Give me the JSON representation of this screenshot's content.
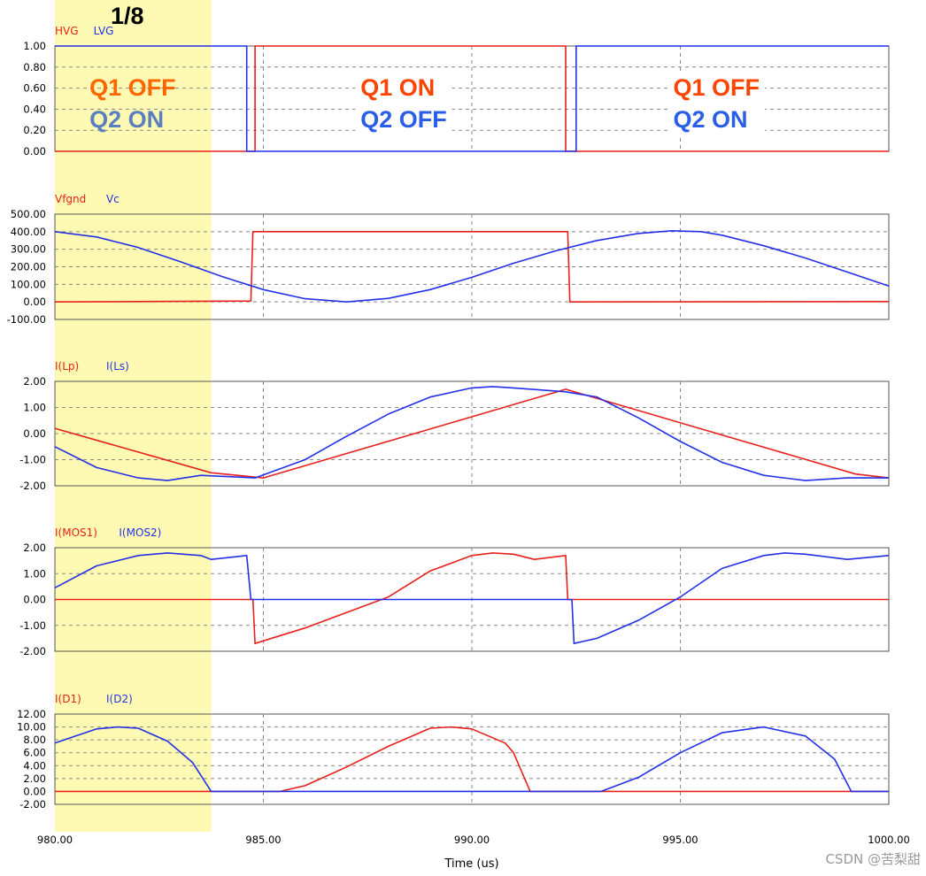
{
  "fraction_label": "1/8",
  "watermark": "CSDN @苦梨甜",
  "highlight": {
    "x_start": 980.0,
    "x_end": 983.75,
    "color": "#fff9a6"
  },
  "colors": {
    "red": "#e8201c",
    "blue": "#2230e8",
    "orange": "#ff6600",
    "steel": "#5a7fc0",
    "grid": "#888888"
  },
  "state_labels": [
    {
      "q1": "Q1 OFF",
      "q2": "Q2 ON",
      "q1_color": "#ff6600",
      "q2_color": "#5a7fc0",
      "at_x": 981.0
    },
    {
      "q1": "Q1 ON",
      "q2": "Q2 OFF",
      "q1_color": "#ff4400",
      "q2_color": "#2a5de8",
      "at_x": 987.5
    },
    {
      "q1": "Q1 OFF",
      "q2": "Q2 ON",
      "q1_color": "#ff4400",
      "q2_color": "#2a5de8",
      "at_x": 995.0
    }
  ],
  "chart_data": {
    "type": "line",
    "xlabel": "Time (us)",
    "xlim": [
      980.0,
      1000.0
    ],
    "x_ticks": [
      "980.00",
      "985.00",
      "990.00",
      "995.00",
      "1000.00"
    ],
    "panels": [
      {
        "id": "gate",
        "ylim": [
          0,
          1
        ],
        "y_ticks": [
          "1.00",
          "0.80",
          "0.60",
          "0.40",
          "0.20",
          "0.00"
        ],
        "series": [
          {
            "name": "HVG",
            "color": "#e8201c",
            "points": [
              [
                980,
                0
              ],
              [
                984.8,
                0
              ],
              [
                984.8,
                1
              ],
              [
                992.25,
                1
              ],
              [
                992.25,
                0
              ],
              [
                1000,
                0
              ]
            ]
          },
          {
            "name": "LVG",
            "color": "#2230e8",
            "points": [
              [
                980,
                1
              ],
              [
                984.6,
                1
              ],
              [
                984.6,
                0
              ],
              [
                992.5,
                0
              ],
              [
                992.5,
                1
              ],
              [
                1000,
                1
              ]
            ]
          }
        ]
      },
      {
        "id": "voltage",
        "ylim": [
          -100,
          500
        ],
        "y_ticks": [
          "500.00",
          "400.00",
          "300.00",
          "200.00",
          "100.00",
          "0.00",
          "-100.00"
        ],
        "series": [
          {
            "name": "Vfgnd",
            "color": "#e8201c",
            "points": [
              [
                980,
                0
              ],
              [
                984.7,
                5
              ],
              [
                984.75,
                400
              ],
              [
                992.3,
                400
              ],
              [
                992.35,
                0
              ],
              [
                1000,
                2
              ]
            ]
          },
          {
            "name": "Vc",
            "color": "#2230e8",
            "points": [
              [
                980,
                400
              ],
              [
                981,
                370
              ],
              [
                982,
                310
              ],
              [
                983,
                230
              ],
              [
                984,
                145
              ],
              [
                985,
                70
              ],
              [
                986,
                18
              ],
              [
                987,
                0
              ],
              [
                988,
                20
              ],
              [
                989,
                70
              ],
              [
                990,
                140
              ],
              [
                991,
                220
              ],
              [
                992,
                290
              ],
              [
                993,
                350
              ],
              [
                994,
                390
              ],
              [
                994.8,
                405
              ],
              [
                995.5,
                400
              ],
              [
                996,
                380
              ],
              [
                997,
                320
              ],
              [
                998,
                250
              ],
              [
                999,
                170
              ],
              [
                1000,
                90
              ]
            ]
          }
        ]
      },
      {
        "id": "inductor-current",
        "ylim": [
          -2,
          2
        ],
        "y_ticks": [
          "2.00",
          "1.00",
          "0.00",
          "-1.00",
          "-2.00"
        ],
        "series": [
          {
            "name": "I(Lp)",
            "color": "#e8201c",
            "points": [
              [
                980,
                0.2
              ],
              [
                983.75,
                -1.5
              ],
              [
                985,
                -1.7
              ],
              [
                992.25,
                1.7
              ],
              [
                999.2,
                -1.55
              ],
              [
                1000,
                -1.7
              ]
            ]
          },
          {
            "name": "I(Ls)",
            "color": "#2230e8",
            "points": [
              [
                980,
                -0.5
              ],
              [
                981,
                -1.3
              ],
              [
                982,
                -1.7
              ],
              [
                982.7,
                -1.8
              ],
              [
                983.5,
                -1.6
              ],
              [
                984.8,
                -1.7
              ],
              [
                986,
                -1.0
              ],
              [
                987,
                -0.1
              ],
              [
                988,
                0.75
              ],
              [
                989,
                1.4
              ],
              [
                990,
                1.75
              ],
              [
                990.5,
                1.8
              ],
              [
                991,
                1.75
              ],
              [
                992.25,
                1.6
              ],
              [
                993,
                1.4
              ],
              [
                994,
                0.6
              ],
              [
                995,
                -0.3
              ],
              [
                996,
                -1.1
              ],
              [
                997,
                -1.6
              ],
              [
                998,
                -1.8
              ],
              [
                999,
                -1.7
              ],
              [
                1000,
                -1.7
              ]
            ]
          }
        ]
      },
      {
        "id": "mosfet-current",
        "ylim": [
          -2,
          2
        ],
        "y_ticks": [
          "2.00",
          "1.00",
          "0.00",
          "-1.00",
          "-2.00"
        ],
        "series": [
          {
            "name": "I(MOS1)",
            "color": "#e8201c",
            "points": [
              [
                980,
                0
              ],
              [
                984.75,
                0
              ],
              [
                984.8,
                -1.7
              ],
              [
                986,
                -1.1
              ],
              [
                987,
                -0.5
              ],
              [
                988,
                0.1
              ],
              [
                989,
                1.1
              ],
              [
                990,
                1.7
              ],
              [
                990.5,
                1.8
              ],
              [
                991,
                1.75
              ],
              [
                991.5,
                1.55
              ],
              [
                992.25,
                1.7
              ],
              [
                992.3,
                0
              ],
              [
                1000,
                0
              ]
            ]
          },
          {
            "name": "I(MOS2)",
            "color": "#2230e8",
            "points": [
              [
                980,
                0.45
              ],
              [
                981,
                1.3
              ],
              [
                982,
                1.7
              ],
              [
                982.7,
                1.8
              ],
              [
                983.5,
                1.7
              ],
              [
                983.75,
                1.55
              ],
              [
                984.6,
                1.7
              ],
              [
                984.7,
                0
              ],
              [
                992.4,
                0
              ],
              [
                992.45,
                -1.7
              ],
              [
                993,
                -1.5
              ],
              [
                994,
                -0.8
              ],
              [
                995,
                0.1
              ],
              [
                996,
                1.2
              ],
              [
                997,
                1.7
              ],
              [
                997.5,
                1.8
              ],
              [
                998,
                1.75
              ],
              [
                999,
                1.55
              ],
              [
                1000,
                1.7
              ]
            ]
          }
        ]
      },
      {
        "id": "diode-current",
        "ylim": [
          -2,
          12
        ],
        "y_ticks": [
          "12.00",
          "10.00",
          "8.00",
          "6.00",
          "4.00",
          "2.00",
          "0.00",
          "-2.00"
        ],
        "series": [
          {
            "name": "I(D1)",
            "color": "#e8201c",
            "points": [
              [
                980,
                0
              ],
              [
                985.4,
                0
              ],
              [
                986,
                0.9
              ],
              [
                987,
                3.8
              ],
              [
                988,
                7.0
              ],
              [
                989,
                9.8
              ],
              [
                989.5,
                10.0
              ],
              [
                990,
                9.7
              ],
              [
                990.8,
                7.5
              ],
              [
                991,
                6.0
              ],
              [
                991.4,
                0
              ],
              [
                1000,
                0
              ]
            ]
          },
          {
            "name": "I(D2)",
            "color": "#2230e8",
            "points": [
              [
                980,
                7.5
              ],
              [
                980.5,
                8.6
              ],
              [
                981,
                9.7
              ],
              [
                981.5,
                10.0
              ],
              [
                982,
                9.8
              ],
              [
                982.7,
                7.8
              ],
              [
                983.3,
                4.5
              ],
              [
                983.75,
                0
              ],
              [
                993.1,
                0
              ],
              [
                994,
                2.2
              ],
              [
                995,
                6.0
              ],
              [
                996,
                9.1
              ],
              [
                997,
                10.0
              ],
              [
                998,
                8.6
              ],
              [
                998.7,
                5.0
              ],
              [
                999.1,
                0
              ],
              [
                1000,
                0
              ]
            ]
          }
        ]
      }
    ]
  }
}
